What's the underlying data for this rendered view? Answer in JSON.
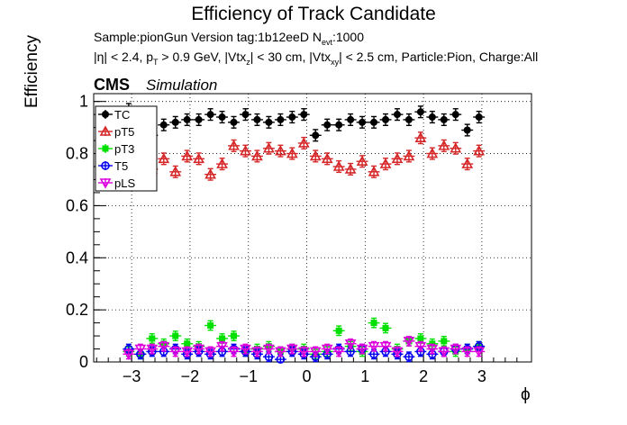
{
  "header": {
    "title": "Efficiency of Track Candidate",
    "sample_line": "Sample:pionGun   Version tag:1b12eeD  N",
    "sample_sub": "evt",
    "sample_tail": ":1000",
    "cuts_a": "|η| < 2.4, p",
    "cuts_a_sub": "T",
    "cuts_b": " > 0.9 GeV, |Vtx",
    "cuts_b_sub": "z",
    "cuts_c": "| < 30 cm, |Vtx",
    "cuts_c_sub": "xy",
    "cuts_d": "| < 2.5 cm, Particle:Pion, Charge:All",
    "cms": "CMS",
    "simulation": "Simulation"
  },
  "chart_data": {
    "type": "scatter",
    "xlabel": "ϕ",
    "ylabel": "Efficiency",
    "xlim": [
      -3.65,
      3.85
    ],
    "ylim": [
      0,
      1.03
    ],
    "grid": true,
    "legend_placement": "top-left",
    "xticks": [
      -3,
      -2,
      -1,
      0,
      1,
      2,
      3
    ],
    "xtick_labels": [
      "−3",
      "−2",
      "−1",
      "0",
      "1",
      "2",
      "3"
    ],
    "yticks": [
      0,
      0.2,
      0.4,
      0.6,
      0.8,
      1.0
    ],
    "ytick_labels": [
      "0",
      "0.2",
      "0.4",
      "0.6",
      "0.8",
      "1"
    ],
    "x": [
      -3.05,
      -2.85,
      -2.65,
      -2.45,
      -2.25,
      -2.05,
      -1.85,
      -1.65,
      -1.45,
      -1.25,
      -1.05,
      -0.85,
      -0.65,
      -0.45,
      -0.25,
      -0.05,
      0.15,
      0.35,
      0.55,
      0.75,
      0.95,
      1.15,
      1.35,
      1.55,
      1.75,
      1.95,
      2.15,
      2.35,
      2.55,
      2.75,
      2.95
    ],
    "series": [
      {
        "name": "TC",
        "color": "#000000",
        "marker": "filled-circle",
        "values": [
          0.97,
          0.9,
          0.87,
          0.91,
          0.92,
          0.93,
          0.93,
          0.95,
          0.94,
          0.92,
          0.95,
          0.93,
          0.92,
          0.93,
          0.94,
          0.95,
          0.87,
          0.91,
          0.91,
          0.93,
          0.92,
          0.92,
          0.93,
          0.95,
          0.93,
          0.96,
          0.94,
          0.93,
          0.95,
          0.89,
          0.94
        ]
      },
      {
        "name": "pT5",
        "color": "#d62728",
        "marker": "open-triangle",
        "values": [
          0.77,
          0.75,
          0.74,
          0.78,
          0.73,
          0.79,
          0.78,
          0.72,
          0.76,
          0.83,
          0.81,
          0.79,
          0.82,
          0.81,
          0.8,
          0.84,
          0.79,
          0.78,
          0.75,
          0.74,
          0.77,
          0.73,
          0.76,
          0.78,
          0.79,
          0.86,
          0.8,
          0.83,
          0.82,
          0.76,
          0.81
        ]
      },
      {
        "name": "pT3",
        "color": "#00e000",
        "marker": "filled-square",
        "values": [
          0.04,
          0.03,
          0.09,
          0.07,
          0.1,
          0.07,
          0.06,
          0.14,
          0.09,
          0.1,
          0.04,
          0.05,
          0.06,
          0.04,
          0.05,
          0.05,
          0.03,
          0.04,
          0.12,
          0.06,
          0.04,
          0.15,
          0.13,
          0.05,
          0.08,
          0.09,
          0.07,
          0.08,
          0.04,
          0.05,
          0.06
        ]
      },
      {
        "name": "T5",
        "color": "#0000ee",
        "marker": "open-circle",
        "values": [
          0.05,
          0.03,
          0.04,
          0.04,
          0.05,
          0.03,
          0.04,
          0.03,
          0.04,
          0.05,
          0.04,
          0.03,
          0.02,
          0.01,
          0.04,
          0.03,
          0.02,
          0.03,
          0.05,
          0.04,
          0.05,
          0.03,
          0.04,
          0.03,
          0.02,
          0.04,
          0.03,
          0.04,
          0.05,
          0.05,
          0.06
        ]
      },
      {
        "name": "pLS",
        "color": "#dd00dd",
        "marker": "open-triangle-down",
        "values": [
          0.03,
          0.05,
          0.05,
          0.06,
          0.04,
          0.04,
          0.05,
          0.04,
          0.06,
          0.04,
          0.05,
          0.04,
          0.05,
          0.04,
          0.05,
          0.04,
          0.04,
          0.05,
          0.04,
          0.07,
          0.05,
          0.06,
          0.06,
          0.04,
          0.08,
          0.06,
          0.05,
          0.04,
          0.05,
          0.04,
          0.04
        ]
      }
    ]
  }
}
